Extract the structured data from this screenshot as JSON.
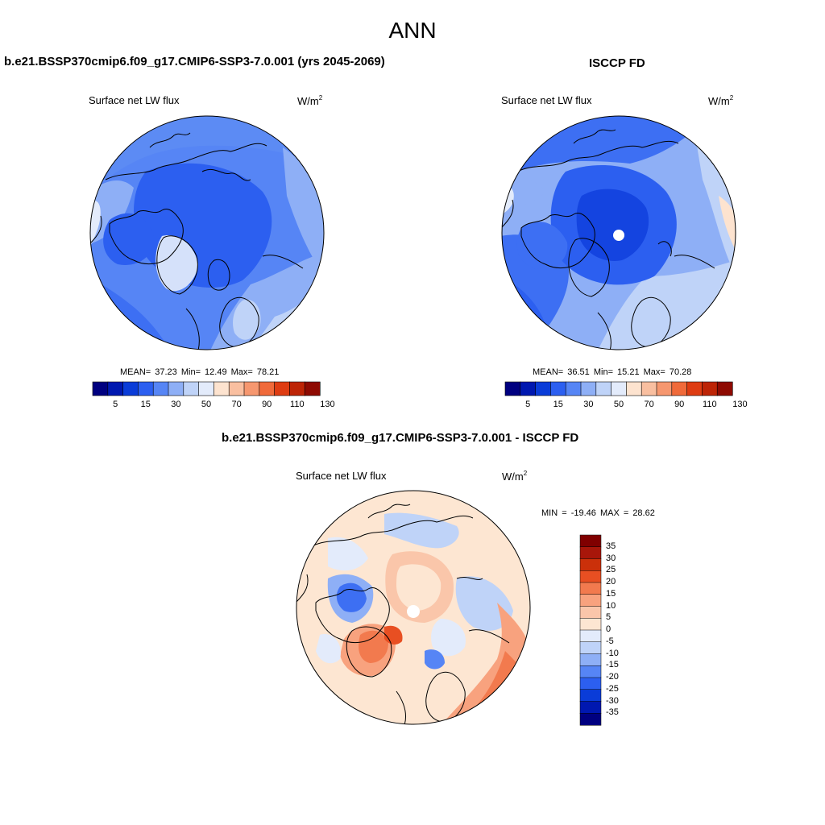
{
  "title": "ANN",
  "colors": {
    "seq_fill": [
      "#000080",
      "#0018b0",
      "#0a3cd8",
      "#2c5ff0",
      "#5685f5",
      "#8eaff6",
      "#bfd3f8",
      "#e3ebfb",
      "#fde3cf",
      "#f9bfa0",
      "#f6976f",
      "#f06a3a",
      "#de3c12",
      "#bd2406",
      "#8e0a02"
    ],
    "div_fill": [
      "#000080",
      "#0018b0",
      "#0a3cd8",
      "#2c5ff0",
      "#5685f5",
      "#8eaff6",
      "#bfd3f8",
      "#e3ebfb",
      "#fde6d2",
      "#fac6aa",
      "#f8a27e",
      "#f27a4e",
      "#e84f22",
      "#cb300a",
      "#a8160a",
      "#800000"
    ]
  },
  "panels": {
    "model": {
      "title": "b.e21.BSSP370cmip6.f09_g17.CMIP6-SSP3-7.0.001 (yrs 2045-2069)",
      "variable": "Surface net LW flux",
      "units_base": "W/m",
      "units_exp": "2",
      "stats": "MEAN=  37.23  Min=  12.49  Max=  78.21"
    },
    "obs": {
      "title": "ISCCP FD",
      "variable": "Surface net LW flux",
      "units_base": "W/m",
      "units_exp": "2",
      "stats": "MEAN=  36.51  Min=  15.21  Max=  70.28"
    },
    "diff": {
      "title": "b.e21.BSSP370cmip6.f09_g17.CMIP6-SSP3-7.0.001 - ISCCP FD",
      "variable": "Surface net LW flux",
      "units_base": "W/m",
      "units_exp": "2",
      "stats": "MIN = -19.46 MAX =  28.62"
    }
  },
  "colorbar_ticks": [
    "5",
    "15",
    "30",
    "50",
    "70",
    "90",
    "110",
    "130"
  ],
  "diff_colorbar_ticks": [
    "35",
    "30",
    "25",
    "20",
    "15",
    "10",
    "5",
    "0",
    "-5",
    "-10",
    "-15",
    "-20",
    "-25",
    "-30",
    "-35"
  ]
}
